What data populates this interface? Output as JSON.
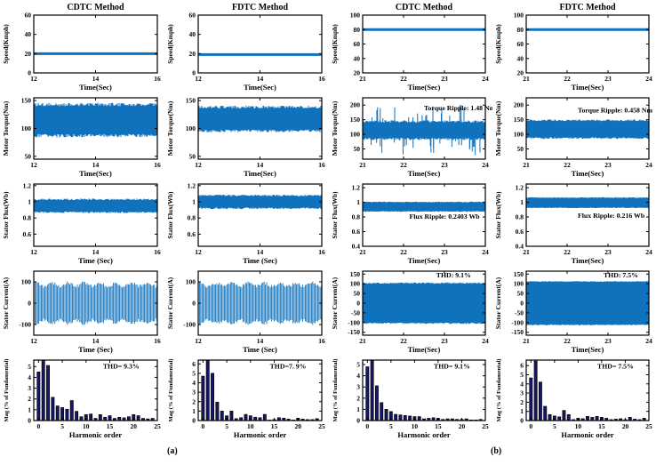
{
  "figure_labels": {
    "left": "(a)",
    "right": "(b)"
  },
  "colors": {
    "signal": "#1072BD",
    "bar": "#16166B",
    "bar_edge": "#000000",
    "axis": "#000000",
    "text": "#000000"
  },
  "chart_data": [
    {
      "type": "line",
      "title": "CDTC Method",
      "ylabel": "Speed(Kmph)",
      "xlabel": "Time(Sec)",
      "xlim": [
        12,
        16
      ],
      "xticks": [
        12,
        14,
        16
      ],
      "ylim": [
        0,
        60
      ],
      "yticks": [
        0,
        20,
        40,
        60
      ],
      "signal": {
        "kind": "flat",
        "value": 20
      }
    },
    {
      "type": "line",
      "title": "FDTC Method",
      "ylabel": "Speed(Kmph)",
      "xlabel": "Time(Sec)",
      "xlim": [
        12,
        16
      ],
      "xticks": [
        12,
        14,
        16
      ],
      "ylim": [
        0,
        60
      ],
      "yticks": [
        0,
        20,
        40,
        60
      ],
      "signal": {
        "kind": "flat",
        "value": 19
      }
    },
    {
      "type": "line",
      "title": "CDTC Method",
      "ylabel": "Speed(Kmph)",
      "xlabel": "Time(Sec)",
      "xlim": [
        21,
        24
      ],
      "xticks": [
        21,
        22,
        23,
        24
      ],
      "ylim": [
        20,
        100
      ],
      "yticks": [
        20,
        40,
        60,
        80,
        100
      ],
      "signal": {
        "kind": "flat",
        "value": 80
      }
    },
    {
      "type": "line",
      "title": "FDTC Method",
      "ylabel": "Speed(Kmph)",
      "xlabel": "Time(Sec)",
      "xlim": [
        21,
        24
      ],
      "xticks": [
        21,
        22,
        23,
        24
      ],
      "ylim": [
        20,
        100
      ],
      "yticks": [
        20,
        40,
        60,
        80,
        100
      ],
      "signal": {
        "kind": "flat",
        "value": 80
      }
    },
    {
      "type": "area",
      "ylabel": "Motor Torque(Nm)",
      "xlabel": "Time(Sec)",
      "xlim": [
        12,
        16
      ],
      "xticks": [
        12,
        14,
        16
      ],
      "ylim": [
        45,
        155
      ],
      "yticks": [
        50,
        100,
        150
      ],
      "signal": {
        "kind": "band",
        "lo": 90,
        "hi": 140,
        "fuzz": 6
      }
    },
    {
      "type": "area",
      "ylabel": "Motor Torque(Nm)",
      "xlabel": "Time(Sec)",
      "xlim": [
        12,
        16
      ],
      "xticks": [
        12,
        14,
        16
      ],
      "ylim": [
        45,
        155
      ],
      "yticks": [
        50,
        100,
        150
      ],
      "signal": {
        "kind": "band",
        "lo": 98,
        "hi": 136,
        "fuzz": 5
      }
    },
    {
      "type": "area",
      "ylabel": "Motor Torque(Nm)",
      "xlabel": "Time(Sec)",
      "xlim": [
        21,
        24
      ],
      "xticks": [
        21,
        22,
        23,
        24
      ],
      "ylim": [
        15,
        225
      ],
      "yticks": [
        50,
        100,
        150,
        200
      ],
      "annotation": "Torque Ripple: 1.48 Nm",
      "ann_pos": [
        0.5,
        0.2
      ],
      "signal": {
        "kind": "band",
        "lo": 88,
        "hi": 140,
        "fuzz": 8,
        "spikes": {
          "count": 55,
          "up": 205,
          "down": 28
        }
      }
    },
    {
      "type": "area",
      "ylabel": "Motor Torque(Nm)",
      "xlabel": "Time(Sec)",
      "xlim": [
        21,
        24
      ],
      "xticks": [
        21,
        22,
        23,
        24
      ],
      "ylim": [
        15,
        225
      ],
      "yticks": [
        50,
        100,
        150,
        200
      ],
      "annotation": "Torque Ripple: 0.458 Nm",
      "ann_pos": [
        0.42,
        0.24
      ],
      "signal": {
        "kind": "band",
        "lo": 90,
        "hi": 145,
        "fuzz": 6
      }
    },
    {
      "type": "area",
      "ylabel": "Stator Flux(Wb)",
      "xlabel": "Time (Sec)",
      "xlim": [
        12,
        16
      ],
      "xticks": [
        12,
        14,
        16
      ],
      "ylim": [
        0.45,
        1.22
      ],
      "yticks": [
        0.6,
        0.8,
        1,
        1.2
      ],
      "signal": {
        "kind": "band",
        "lo": 0.88,
        "hi": 1.02,
        "fuzz": 0.02
      }
    },
    {
      "type": "area",
      "ylabel": "Stator Flux(Wb)",
      "xlabel": "Time (Sec)",
      "xlim": [
        12,
        16
      ],
      "xticks": [
        12,
        14,
        16
      ],
      "ylim": [
        0.45,
        1.22
      ],
      "yticks": [
        0.6,
        0.8,
        1,
        1.2
      ],
      "signal": {
        "kind": "band",
        "lo": 0.93,
        "hi": 1.07,
        "fuzz": 0.02
      }
    },
    {
      "type": "area",
      "ylabel": "Stator Flux(Wb)",
      "xlabel": "Time(Sec)",
      "xlim": [
        21,
        24
      ],
      "xticks": [
        21,
        22,
        23,
        24
      ],
      "ylim": [
        0.4,
        1.25
      ],
      "yticks": [
        0.4,
        0.6,
        0.8,
        1,
        1.2
      ],
      "annotation": "Flux Ripple: 0.2403 Wb",
      "ann_pos": [
        0.38,
        0.56
      ],
      "signal": {
        "kind": "band",
        "lo": 0.88,
        "hi": 1.0,
        "fuzz": 0.01
      }
    },
    {
      "type": "area",
      "ylabel": "Stator Flux(Wb)",
      "xlabel": "Time(Sec)",
      "xlim": [
        21,
        24
      ],
      "xticks": [
        21,
        22,
        23,
        24
      ],
      "ylim": [
        0.4,
        1.25
      ],
      "yticks": [
        0.4,
        0.6,
        0.8,
        1,
        1.2
      ],
      "annotation": "Flux Ripple: 0.216 Wb",
      "ann_pos": [
        0.42,
        0.54
      ],
      "signal": {
        "kind": "band",
        "lo": 0.93,
        "hi": 1.06,
        "fuzz": 0.01
      }
    },
    {
      "type": "area",
      "ylabel": "Stator Current(A)",
      "xlabel": "Time (Sec)",
      "xlim": [
        12,
        16
      ],
      "xticks": [
        12,
        14,
        16
      ],
      "ylim": [
        -150,
        150
      ],
      "yticks": [
        -100,
        0,
        100
      ],
      "signal": {
        "kind": "osc",
        "amp": 100
      }
    },
    {
      "type": "area",
      "ylabel": "Stator Current(A)",
      "xlabel": "Time (Sec)",
      "xlim": [
        12,
        16
      ],
      "xticks": [
        12,
        14,
        16
      ],
      "ylim": [
        -150,
        150
      ],
      "yticks": [
        -100,
        0,
        100
      ],
      "signal": {
        "kind": "osc",
        "amp": 100
      }
    },
    {
      "type": "area",
      "ylabel": "Stator Current(A)",
      "xlabel": "Time(Sec)",
      "xlim": [
        21,
        24
      ],
      "xticks": [
        21,
        22,
        23,
        24
      ],
      "ylim": [
        -165,
        165
      ],
      "yticks": [
        -150,
        -100,
        -50,
        0,
        50,
        100,
        150
      ],
      "annotation": "THD: 9.1%",
      "ann_pos": [
        0.6,
        0.1
      ],
      "signal": {
        "kind": "band",
        "lo": -100,
        "hi": 100,
        "fuzz": 7
      }
    },
    {
      "type": "area",
      "ylabel": "Stator Current(A)",
      "xlabel": "Time(Sec)",
      "xlim": [
        21,
        24
      ],
      "xticks": [
        21,
        22,
        23,
        24
      ],
      "ylim": [
        -165,
        165
      ],
      "yticks": [
        -150,
        -100,
        -50,
        0,
        50,
        100,
        150
      ],
      "annotation": "THD: 7.5%",
      "ann_pos": [
        0.63,
        0.1
      ],
      "signal": {
        "kind": "band",
        "lo": -110,
        "hi": 110,
        "fuzz": 4
      }
    },
    {
      "type": "bar",
      "ylabel": "Mag (% of Fundamental)",
      "xlabel": "Harmonic order",
      "xlim": [
        -1,
        25
      ],
      "xticks": [
        0,
        5,
        10,
        15,
        20,
        25
      ],
      "ylim": [
        0,
        5.6
      ],
      "yticks": [
        0,
        1,
        2,
        3,
        4,
        5
      ],
      "annotation": "THD= 9.3%",
      "ann_pos": [
        0.56,
        0.14
      ],
      "categories": [
        0,
        1,
        2,
        3,
        4,
        5,
        6,
        7,
        8,
        9,
        10,
        11,
        12,
        13,
        14,
        15,
        16,
        17,
        18,
        19,
        20,
        21,
        22,
        23,
        24
      ],
      "signal": {
        "kind": "bars",
        "values": [
          4.5,
          5.7,
          5.1,
          2.15,
          1.35,
          1.2,
          1.05,
          1.85,
          0.85,
          0.35,
          0.55,
          0.6,
          0.2,
          0.55,
          0.3,
          0.45,
          0.2,
          0.3,
          0.25,
          0.35,
          0.55,
          0.45,
          0.2,
          0.15,
          0.2
        ]
      }
    },
    {
      "type": "bar",
      "ylabel": "Mag (% of Fundamental)",
      "xlabel": "Harmonic order",
      "xlim": [
        -1,
        25
      ],
      "xticks": [
        0,
        5,
        10,
        15,
        20,
        25
      ],
      "ylim": [
        0,
        6.4
      ],
      "yticks": [
        0,
        1,
        2,
        3,
        4,
        5,
        6
      ],
      "annotation": "THD=7. 9%",
      "ann_pos": [
        0.58,
        0.14
      ],
      "categories": [
        0,
        1,
        2,
        3,
        4,
        5,
        6,
        7,
        8,
        9,
        10,
        11,
        12,
        13,
        14,
        15,
        16,
        17,
        18,
        19,
        20,
        21,
        22,
        23,
        24
      ],
      "signal": {
        "kind": "bars",
        "values": [
          4.7,
          6.35,
          5.0,
          1.95,
          1.0,
          0.5,
          1.0,
          0.2,
          0.3,
          0.65,
          0.5,
          0.35,
          0.3,
          0.65,
          0.05,
          0.1,
          0.3,
          0.25,
          0.15,
          0.05,
          0.25,
          0.15,
          0.1,
          0.1,
          0.2
        ]
      }
    },
    {
      "type": "bar",
      "ylabel": "Mag (% of Fundamental)",
      "xlabel": "Harmonic order",
      "xlim": [
        -1,
        25
      ],
      "xticks": [
        0,
        5,
        10,
        15,
        20,
        25
      ],
      "ylim": [
        0,
        5.4
      ],
      "yticks": [
        0,
        1,
        2,
        3,
        4,
        5
      ],
      "annotation": "THD= 9.1%",
      "ann_pos": [
        0.58,
        0.14
      ],
      "categories": [
        0,
        1,
        2,
        3,
        4,
        5,
        6,
        7,
        8,
        9,
        10,
        11,
        12,
        13,
        14,
        15,
        16,
        17,
        18,
        19,
        20,
        21,
        22,
        23,
        24
      ],
      "signal": {
        "kind": "bars",
        "values": [
          4.8,
          5.35,
          3.1,
          1.6,
          1.0,
          0.8,
          0.55,
          0.5,
          0.45,
          0.4,
          0.35,
          0.35,
          0.15,
          0.2,
          0.25,
          0.2,
          0.1,
          0.15,
          0.15,
          0.1,
          0.1,
          0.15,
          0.05,
          0.05,
          0.1
        ]
      }
    },
    {
      "type": "bar",
      "ylabel": "Mag (% of Fundamental)",
      "xlabel": "Harmonic order",
      "xlim": [
        -1,
        25
      ],
      "xticks": [
        0,
        5,
        10,
        15,
        20,
        25
      ],
      "ylim": [
        0,
        6.6
      ],
      "yticks": [
        0,
        1,
        2,
        3,
        4,
        5,
        6
      ],
      "annotation": "THD= 7.5%",
      "ann_pos": [
        0.58,
        0.14
      ],
      "categories": [
        0,
        1,
        2,
        3,
        4,
        5,
        6,
        7,
        8,
        9,
        10,
        11,
        12,
        13,
        14,
        15,
        16,
        17,
        18,
        19,
        20,
        21,
        22,
        23,
        24
      ],
      "signal": {
        "kind": "bars",
        "values": [
          4.65,
          6.5,
          4.2,
          1.55,
          0.65,
          0.5,
          0.4,
          1.1,
          0.65,
          0.1,
          0.25,
          0.2,
          0.45,
          0.35,
          0.45,
          0.35,
          0.25,
          0.1,
          0.15,
          0.2,
          0.1,
          0.35,
          0.15,
          0.1,
          0.25
        ]
      }
    }
  ]
}
